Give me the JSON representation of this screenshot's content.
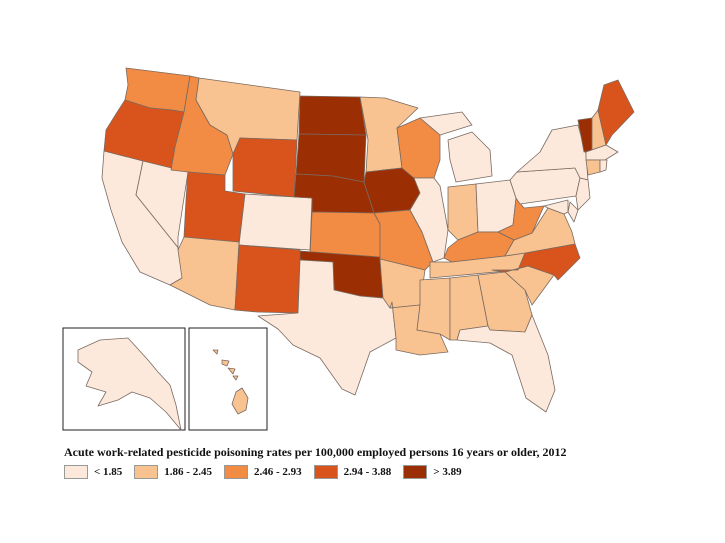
{
  "title": "Acute work-related pesticide poisoning rates per 100,000 employed persons 16 years or older, 2012",
  "legend": [
    {
      "label": "< 1.85",
      "color": "#fde9dc"
    },
    {
      "label": "1.86 - 2.45",
      "color": "#f9c391"
    },
    {
      "label": "2.46 - 2.93",
      "color": "#f28b43"
    },
    {
      "label": "2.94 - 3.88",
      "color": "#d9541c"
    },
    {
      "label": "> 3.89",
      "color": "#9c2e04"
    }
  ],
  "states": {
    "WA": 3,
    "OR": 4,
    "CA": 1,
    "NV": 1,
    "ID": 3,
    "MT": 2,
    "WY": 4,
    "UT": 4,
    "AZ": 2,
    "CO": 1,
    "NM": 4,
    "ND": 5,
    "SD": 5,
    "NE": 5,
    "KS": 3,
    "OK": 5,
    "TX": 1,
    "MN": 2,
    "IA": 5,
    "MO": 3,
    "AR": 2,
    "LA": 2,
    "WI": 3,
    "IL": 1,
    "MI": 1,
    "IN": 2,
    "OH": 1,
    "KY": 3,
    "TN": 2,
    "MS": 2,
    "AL": 2,
    "GA": 2,
    "FL": 1,
    "SC": 2,
    "NC": 4,
    "VA": 2,
    "WV": 3,
    "PA": 1,
    "NY": 1,
    "VT": 5,
    "NH": 2,
    "ME": 4,
    "MA": 1,
    "CT": 2,
    "RI": 1,
    "NJ": 1,
    "DE": 1,
    "MD": 1,
    "AK": 1,
    "HI": 2
  }
}
